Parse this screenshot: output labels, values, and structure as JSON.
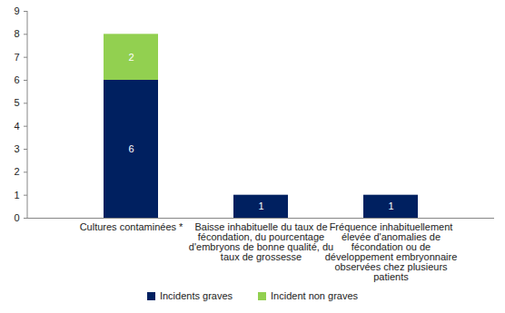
{
  "chart_data": {
    "type": "bar",
    "stacked": true,
    "data_labels": true,
    "legend": "bottom",
    "grid": false,
    "categories": [
      "Cultures contaminées *",
      "Baisse inhabituelle du taux de fécondation, du pourcentage d'embryons de bonne qualité, du taux de grossesse",
      "Fréquence inhabituellement élevée d'anomalies de fécondation ou de développement embryonnaire observées chez plusieurs patients"
    ],
    "series": [
      {
        "name": "Incidents graves",
        "color": "#002060",
        "values": [
          6,
          1,
          1
        ]
      },
      {
        "name": "Incident non graves",
        "color": "#92D050",
        "values": [
          2,
          null,
          null
        ]
      }
    ],
    "ylim": [
      0,
      9
    ],
    "yticks": [
      0,
      1,
      2,
      3,
      4,
      5,
      6,
      7,
      8,
      9
    ]
  }
}
